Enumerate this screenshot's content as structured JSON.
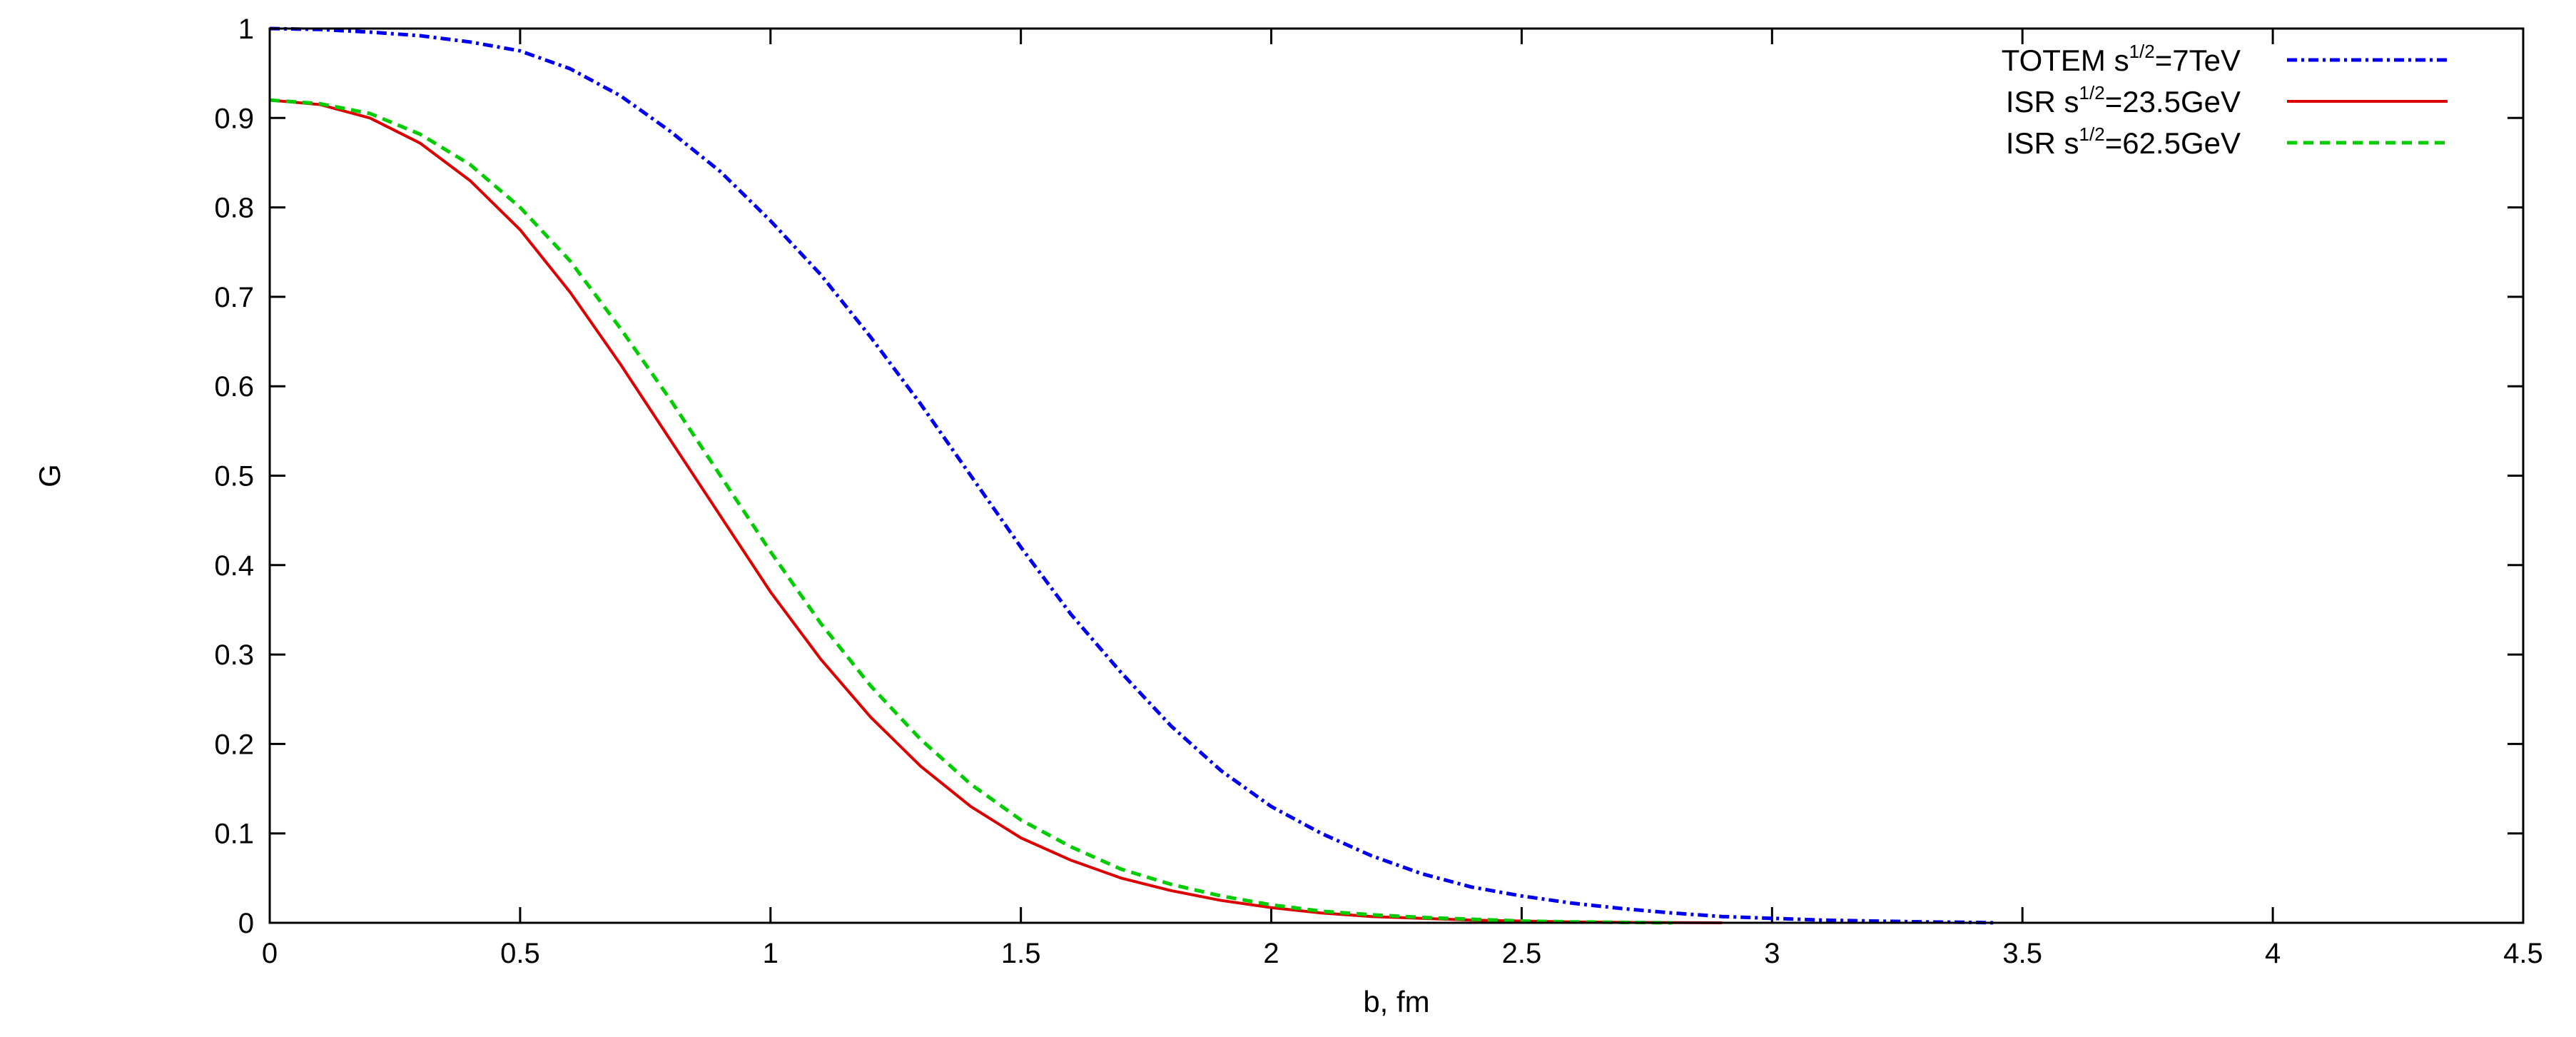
{
  "chart_data": {
    "type": "line",
    "xlabel": "b, fm",
    "ylabel": "G",
    "xlim": [
      0,
      4.5
    ],
    "ylim": [
      0,
      1
    ],
    "xticks": [
      "0",
      "0.5",
      "1",
      "1.5",
      "2",
      "2.5",
      "3",
      "3.5",
      "4",
      "4.5"
    ],
    "yticks": [
      "0",
      "0.1",
      "0.2",
      "0.3",
      "0.4",
      "0.5",
      "0.6",
      "0.7",
      "0.8",
      "0.9",
      "1"
    ],
    "grid": false,
    "legend_position": "top-right",
    "series": [
      {
        "name": "TOTEM s^1/2=7TeV",
        "legend": {
          "pre": "TOTEM s",
          "sup": "1/2",
          "post": "=7TeV"
        },
        "color": "#0000ee",
        "style": "dash-dot",
        "x": [
          0,
          0.1,
          0.2,
          0.3,
          0.4,
          0.5,
          0.6,
          0.7,
          0.8,
          0.9,
          1.0,
          1.1,
          1.2,
          1.3,
          1.4,
          1.5,
          1.6,
          1.7,
          1.8,
          1.9,
          2.0,
          2.1,
          2.2,
          2.3,
          2.4,
          2.5,
          2.6,
          2.7,
          2.8,
          2.9,
          3.0,
          3.1,
          3.2,
          3.3,
          3.4,
          3.45
        ],
        "y": [
          1.0,
          0.999,
          0.996,
          0.992,
          0.985,
          0.975,
          0.955,
          0.925,
          0.885,
          0.84,
          0.785,
          0.725,
          0.655,
          0.58,
          0.5,
          0.42,
          0.345,
          0.28,
          0.22,
          0.17,
          0.13,
          0.1,
          0.075,
          0.055,
          0.04,
          0.03,
          0.022,
          0.016,
          0.011,
          0.007,
          0.005,
          0.003,
          0.002,
          0.001,
          0.0005,
          0.0
        ]
      },
      {
        "name": "ISR s^1/2=23.5GeV",
        "legend": {
          "pre": "ISR s",
          "sup": "1/2",
          "post": "=23.5GeV"
        },
        "color": "#dd0000",
        "style": "solid",
        "x": [
          0,
          0.1,
          0.2,
          0.3,
          0.4,
          0.5,
          0.6,
          0.7,
          0.8,
          0.9,
          1.0,
          1.1,
          1.2,
          1.3,
          1.4,
          1.5,
          1.6,
          1.7,
          1.8,
          1.9,
          2.0,
          2.1,
          2.2,
          2.3,
          2.4,
          2.5,
          2.6,
          2.7,
          2.8,
          2.9
        ],
        "y": [
          0.92,
          0.915,
          0.9,
          0.872,
          0.83,
          0.775,
          0.705,
          0.625,
          0.54,
          0.455,
          0.37,
          0.295,
          0.23,
          0.175,
          0.13,
          0.095,
          0.07,
          0.05,
          0.036,
          0.025,
          0.017,
          0.011,
          0.007,
          0.005,
          0.003,
          0.002,
          0.001,
          0.0005,
          0.0002,
          0.0
        ]
      },
      {
        "name": "ISR s^1/2=62.5GeV",
        "legend": {
          "pre": "ISR s",
          "sup": "1/2",
          "post": "=62.5GeV"
        },
        "color": "#00cc00",
        "style": "dashed",
        "x": [
          0,
          0.1,
          0.2,
          0.3,
          0.4,
          0.5,
          0.6,
          0.7,
          0.8,
          0.9,
          1.0,
          1.1,
          1.2,
          1.3,
          1.4,
          1.5,
          1.6,
          1.7,
          1.8,
          1.9,
          2.0,
          2.1,
          2.2,
          2.3,
          2.4,
          2.5,
          2.6,
          2.7,
          2.8
        ],
        "y": [
          0.92,
          0.916,
          0.905,
          0.882,
          0.848,
          0.8,
          0.74,
          0.665,
          0.585,
          0.5,
          0.415,
          0.335,
          0.265,
          0.205,
          0.155,
          0.115,
          0.085,
          0.06,
          0.043,
          0.03,
          0.02,
          0.013,
          0.009,
          0.006,
          0.004,
          0.002,
          0.001,
          0.0005,
          0.0
        ]
      }
    ]
  }
}
